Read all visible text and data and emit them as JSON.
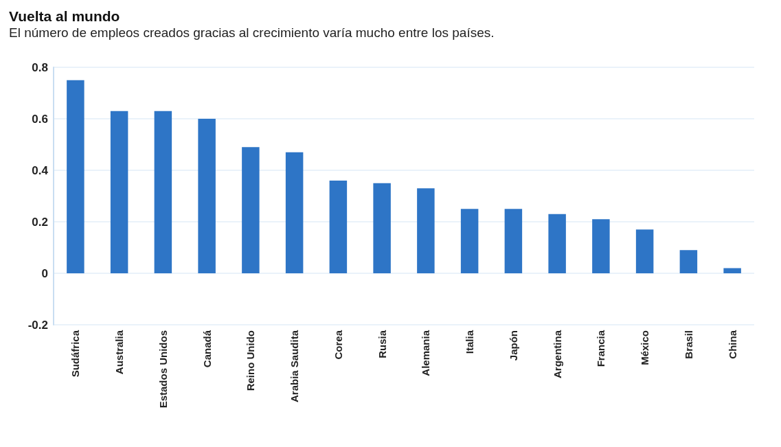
{
  "chart_data": {
    "type": "bar",
    "title": "Vuelta al mundo",
    "subtitle": "El número de empleos creados gracias al crecimiento varía mucho entre los países.",
    "categories": [
      "Sudáfrica",
      "Australia",
      "Estados Unidos",
      "Canadá",
      "Reino Unido",
      "Arabia Saudita",
      "Corea",
      "Rusia",
      "Alemania",
      "Italia",
      "Japón",
      "Argentina",
      "Francia",
      "México",
      "Brasil",
      "China"
    ],
    "values": [
      0.75,
      0.63,
      0.63,
      0.6,
      0.49,
      0.47,
      0.36,
      0.35,
      0.33,
      0.25,
      0.25,
      0.23,
      0.21,
      0.17,
      0.09,
      0.02
    ],
    "color": "#2e75c6",
    "ylim": [
      -0.2,
      0.8
    ],
    "yticks": [
      -0.2,
      0,
      0.2,
      0.4,
      0.6,
      0.8
    ],
    "grid": "y"
  }
}
